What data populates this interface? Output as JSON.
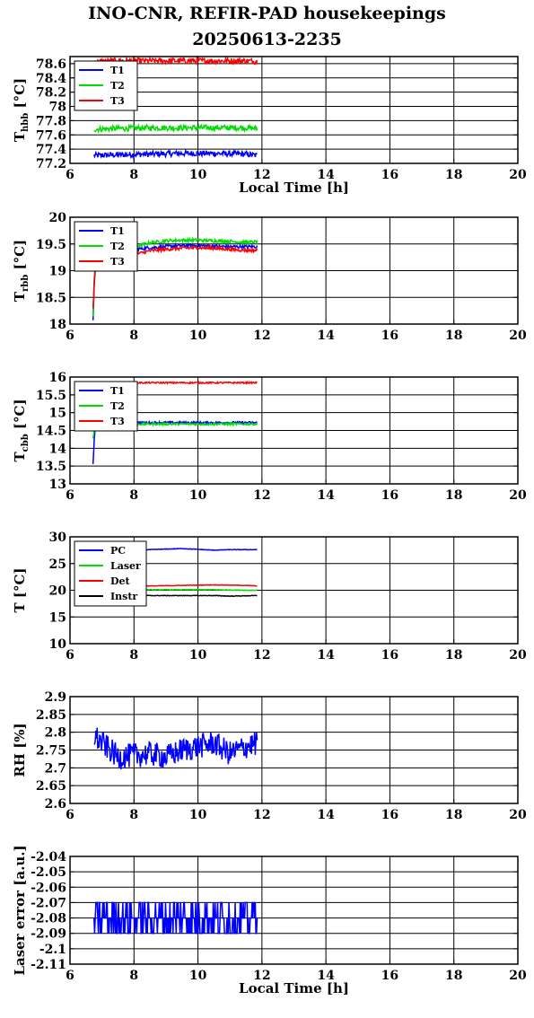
{
  "title": "INO-CNR, REFIR-PAD housekeepings",
  "subtitle": "20250613-2235",
  "colors": {
    "blue": "#0000ff",
    "green": "#00dd00",
    "red": "#ff0000",
    "black": "#000000"
  },
  "chart_data": [
    {
      "type": "line",
      "ylabel": "T",
      "ylabel_sub": "hbb",
      "ylabel_unit": " [°C]",
      "xlabel": "Local Time [h]",
      "xlim": [
        6,
        20
      ],
      "ylim": [
        77.2,
        78.7
      ],
      "xticks": [
        6,
        8,
        10,
        12,
        14,
        16,
        18,
        20
      ],
      "yticks": [
        77.2,
        77.4,
        77.6,
        77.8,
        78,
        78.2,
        78.4,
        78.6
      ],
      "ytick_labels": [
        "77.2",
        "77.4",
        "77.6",
        "77.8",
        "78",
        "78.2",
        "78.4",
        "78.6"
      ],
      "grid": true,
      "legend": "top-left",
      "series": [
        {
          "name": "T1",
          "color": "#0000ff",
          "x": [
            6.75,
            7.5,
            8.5,
            9.5,
            10.5,
            11.5,
            11.85
          ],
          "y": [
            77.31,
            77.32,
            77.33,
            77.34,
            77.34,
            77.33,
            77.31
          ],
          "noise": 0.04
        },
        {
          "name": "T2",
          "color": "#00dd00",
          "x": [
            6.75,
            7.5,
            8.5,
            9.5,
            10.5,
            11.5,
            11.85
          ],
          "y": [
            77.68,
            77.69,
            77.7,
            77.7,
            77.7,
            77.7,
            77.69
          ],
          "noise": 0.04
        },
        {
          "name": "T3",
          "color": "#ff0000",
          "x": [
            6.75,
            7.5,
            8.5,
            9.5,
            10.5,
            11.5,
            11.85
          ],
          "y": [
            78.63,
            78.64,
            78.64,
            78.64,
            78.64,
            78.64,
            78.63
          ],
          "noise": 0.04
        }
      ]
    },
    {
      "type": "line",
      "ylabel": "T",
      "ylabel_sub": "rbb",
      "ylabel_unit": " [°C]",
      "xlabel": "",
      "xlim": [
        6,
        20
      ],
      "ylim": [
        18,
        20
      ],
      "xticks": [
        6,
        8,
        10,
        12,
        14,
        16,
        18,
        20
      ],
      "yticks": [
        18,
        18.5,
        19,
        19.5,
        20
      ],
      "ytick_labels": [
        "18",
        "18.5",
        "19",
        "19.5",
        "20"
      ],
      "grid": true,
      "legend": "top-left",
      "series": [
        {
          "name": "T1",
          "color": "#0000ff",
          "x": [
            6.72,
            6.76,
            6.8,
            7.0,
            7.5,
            8.0,
            8.5,
            9.0,
            9.5,
            10.0,
            10.5,
            11.0,
            11.5,
            11.85
          ],
          "y": [
            18.1,
            18.8,
            19.1,
            19.25,
            19.35,
            19.4,
            19.43,
            19.45,
            19.47,
            19.47,
            19.46,
            19.45,
            19.45,
            19.45
          ],
          "noise": 0.03
        },
        {
          "name": "T2",
          "color": "#00dd00",
          "x": [
            6.72,
            6.76,
            6.8,
            7.0,
            7.5,
            8.0,
            8.5,
            9.0,
            9.5,
            10.0,
            10.5,
            11.0,
            11.5,
            11.85
          ],
          "y": [
            18.15,
            18.9,
            19.2,
            19.3,
            19.4,
            19.45,
            19.52,
            19.56,
            19.57,
            19.57,
            19.56,
            19.55,
            19.53,
            19.54
          ],
          "noise": 0.03
        },
        {
          "name": "T3",
          "color": "#ff0000",
          "x": [
            6.72,
            6.76,
            6.8,
            7.0,
            7.5,
            8.0,
            8.5,
            9.0,
            9.5,
            10.0,
            10.5,
            11.0,
            11.5,
            11.85
          ],
          "y": [
            18.3,
            18.8,
            19.05,
            19.15,
            19.25,
            19.3,
            19.37,
            19.4,
            19.42,
            19.43,
            19.42,
            19.4,
            19.38,
            19.38
          ],
          "noise": 0.03
        }
      ]
    },
    {
      "type": "line",
      "ylabel": "T",
      "ylabel_sub": "cbb",
      "ylabel_unit": " [°C]",
      "xlabel": "",
      "xlim": [
        6,
        20
      ],
      "ylim": [
        13,
        16
      ],
      "xticks": [
        6,
        8,
        10,
        12,
        14,
        16,
        18,
        20
      ],
      "yticks": [
        13,
        13.5,
        14,
        14.5,
        15,
        15.5,
        16
      ],
      "ytick_labels": [
        "13",
        "13.5",
        "14",
        "14.5",
        "15",
        "15.5",
        "16"
      ],
      "grid": true,
      "legend": "top-left",
      "series": [
        {
          "name": "T1",
          "color": "#0000ff",
          "x": [
            6.72,
            6.76,
            6.8,
            7.0,
            8.0,
            9.0,
            10.0,
            11.0,
            11.85
          ],
          "y": [
            13.55,
            14.3,
            14.6,
            14.7,
            14.72,
            14.72,
            14.72,
            14.72,
            14.72
          ],
          "noise": 0.03
        },
        {
          "name": "T2",
          "color": "#00dd00",
          "x": [
            6.72,
            6.76,
            6.8,
            7.0,
            8.0,
            9.0,
            10.0,
            11.0,
            11.85
          ],
          "y": [
            14.3,
            14.5,
            14.62,
            14.68,
            14.68,
            14.68,
            14.68,
            14.68,
            14.68
          ],
          "noise": 0.03
        },
        {
          "name": "T3",
          "color": "#ff0000",
          "x": [
            6.72,
            6.8,
            7.0,
            8.0,
            9.0,
            10.0,
            11.0,
            11.85
          ],
          "y": [
            15.8,
            15.82,
            15.83,
            15.84,
            15.84,
            15.84,
            15.84,
            15.84
          ],
          "noise": 0.02
        }
      ]
    },
    {
      "type": "line",
      "ylabel": "T",
      "ylabel_sub": "",
      "ylabel_unit": " [°C]",
      "xlabel": "",
      "xlim": [
        6,
        20
      ],
      "ylim": [
        10,
        30
      ],
      "xticks": [
        6,
        8,
        10,
        12,
        14,
        16,
        18,
        20
      ],
      "yticks": [
        10,
        15,
        20,
        25,
        30
      ],
      "ytick_labels": [
        "10",
        "15",
        "20",
        "25",
        "30"
      ],
      "grid": true,
      "legend": "top-left",
      "series": [
        {
          "name": "PC",
          "color": "#0000ff",
          "x": [
            6.75,
            7.5,
            8.5,
            9.5,
            10.5,
            11.0,
            11.85
          ],
          "y": [
            27.6,
            27.6,
            27.6,
            27.8,
            27.5,
            27.6,
            27.6
          ],
          "noise": 0.05
        },
        {
          "name": "Laser",
          "color": "#00dd00",
          "x": [
            6.75,
            7.5,
            8.5,
            9.5,
            10.5,
            11.5,
            11.85
          ],
          "y": [
            20.2,
            20.1,
            20.1,
            20.1,
            20.1,
            20.0,
            20.0
          ],
          "noise": 0.05
        },
        {
          "name": "Det",
          "color": "#ff0000",
          "x": [
            6.75,
            7.5,
            8.5,
            9.5,
            10.5,
            11.5,
            11.85
          ],
          "y": [
            21.0,
            20.9,
            20.8,
            20.9,
            21.0,
            20.9,
            20.8
          ],
          "noise": 0.05
        },
        {
          "name": "Instr",
          "color": "#000000",
          "x": [
            6.75,
            7.5,
            8.5,
            9.5,
            10.5,
            11.0,
            11.85
          ],
          "y": [
            19.2,
            19.1,
            19.0,
            19.0,
            19.0,
            18.9,
            19.0
          ],
          "noise": 0.05
        }
      ]
    },
    {
      "type": "line",
      "ylabel": "RH [%]",
      "ylabel_sub": "",
      "ylabel_unit": "",
      "xlabel": "",
      "xlim": [
        6,
        20
      ],
      "ylim": [
        2.6,
        2.9
      ],
      "xticks": [
        6,
        8,
        10,
        12,
        14,
        16,
        18,
        20
      ],
      "yticks": [
        2.6,
        2.65,
        2.7,
        2.75,
        2.8,
        2.85,
        2.9
      ],
      "ytick_labels": [
        "2.6",
        "2.65",
        "2.7",
        "2.75",
        "2.8",
        "2.85",
        "2.9"
      ],
      "grid": true,
      "legend": "none",
      "series": [
        {
          "name": "",
          "color": "#0000ff",
          "x": [
            6.75,
            7.5,
            8.5,
            9.0,
            9.5,
            10.0,
            10.5,
            11.0,
            11.5,
            11.85
          ],
          "y": [
            2.79,
            2.73,
            2.74,
            2.73,
            2.75,
            2.76,
            2.77,
            2.74,
            2.76,
            2.77
          ],
          "noise": 0.035
        }
      ]
    },
    {
      "type": "line",
      "ylabel": "Laser error [a.u.]",
      "ylabel_sub": "",
      "ylabel_unit": "",
      "xlabel": "Local Time [h]",
      "xlim": [
        6,
        20
      ],
      "ylim": [
        -2.11,
        -2.04
      ],
      "xticks": [
        6,
        8,
        10,
        12,
        14,
        16,
        18,
        20
      ],
      "yticks": [
        -2.11,
        -2.1,
        -2.09,
        -2.08,
        -2.07,
        -2.06,
        -2.05,
        -2.04
      ],
      "ytick_labels": [
        "-2.11",
        "-2.1",
        "-2.09",
        "-2.08",
        "-2.07",
        "-2.06",
        "-2.05",
        "-2.04"
      ],
      "grid": true,
      "legend": "none",
      "series": [
        {
          "name": "",
          "color": "#0000ff",
          "x": [
            6.75,
            7.5,
            8.5,
            9.0,
            9.5,
            10.0,
            10.5,
            11.0,
            11.5,
            11.85
          ],
          "y": [
            -2.08,
            -2.08,
            -2.08,
            -2.08,
            -2.08,
            -2.08,
            -2.08,
            -2.08,
            -2.08,
            -2.08
          ],
          "noise": 0.012,
          "step": 0.01
        }
      ]
    }
  ]
}
